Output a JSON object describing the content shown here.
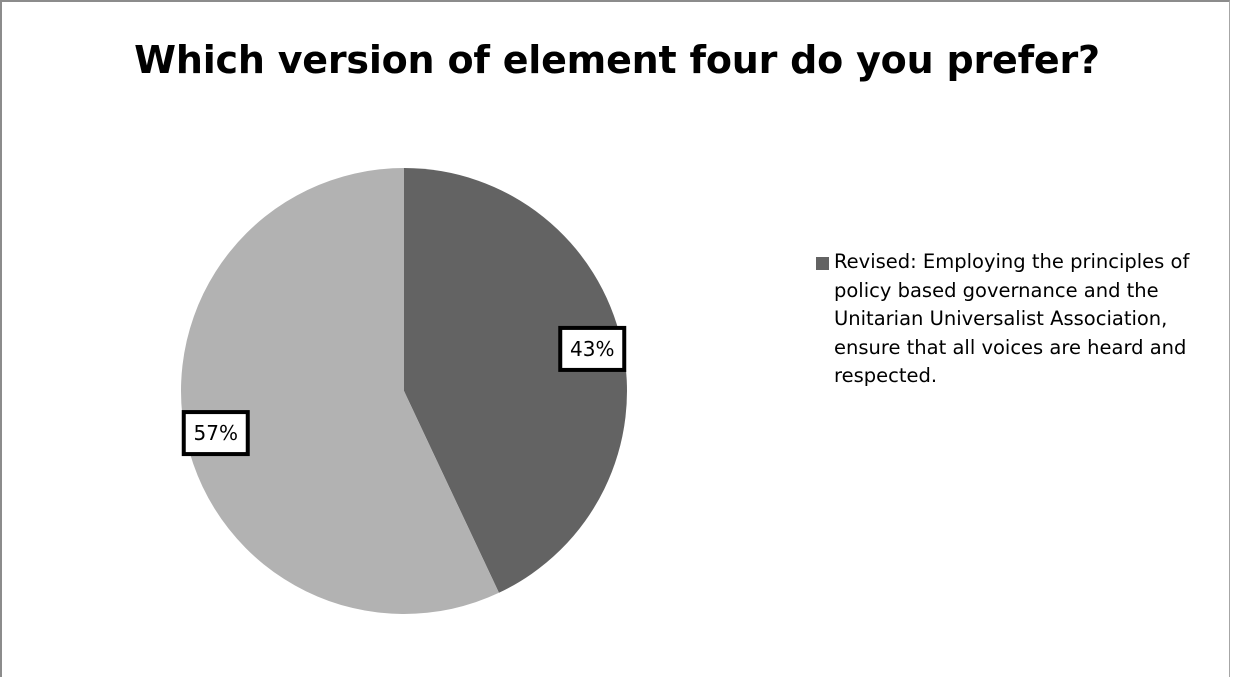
{
  "chart_data": {
    "type": "pie",
    "title": "Which version of element four do you prefer?",
    "slices": [
      {
        "label": "Revised: Employing the principles of policy based governance and the Unitarian Universalist Association, ensure that all voices are heard and respected.",
        "value": 43,
        "display": "43%",
        "color": "#636363",
        "in_legend": true
      },
      {
        "label": "",
        "value": 57,
        "display": "57%",
        "color": "#b2b2b2",
        "in_legend": false
      }
    ],
    "start_angle_deg": 0,
    "direction": "clockwise",
    "legend_position": "right"
  }
}
